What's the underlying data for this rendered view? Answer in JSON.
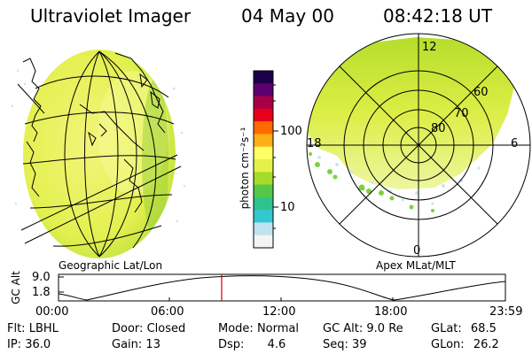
{
  "header": {
    "title": "Ultraviolet Imager",
    "date": "04 May 00",
    "time": "08:42:18 UT"
  },
  "geo_panel": {
    "label": "Geographic Lat/Lon"
  },
  "polar_panel": {
    "label": "Apex MLat/MLT",
    "mlt_labels": {
      "top": "12",
      "left": "18",
      "right": "6",
      "bottom": "0"
    },
    "lat_labels": [
      "60",
      "70",
      "80"
    ]
  },
  "colorbar": {
    "unit_label": "photon cm⁻²s⁻¹",
    "ticks": [
      "100",
      "10"
    ],
    "scale": "log",
    "colors": [
      "#f4f4f4",
      "#bfe3ef",
      "#33c7d2",
      "#2fc28c",
      "#55c84a",
      "#a5dc2b",
      "#e6f04a",
      "#ffff66",
      "#ffae14",
      "#ff6a00",
      "#e8001a",
      "#a80046",
      "#5c006e",
      "#1c0048"
    ]
  },
  "altitude_plot": {
    "ylabel": "GC Alt",
    "yticks": [
      "9.0",
      "1.8"
    ],
    "xticks": [
      "00:00",
      "06:00",
      "12:00",
      "18:00",
      "23:59"
    ],
    "current_time_fraction": 0.365,
    "marker_color": "#d00000"
  },
  "status": {
    "row1": [
      {
        "label": "Flt:",
        "value": "LBHL"
      },
      {
        "label": "Door:",
        "value": "Closed"
      },
      {
        "label": "Mode:",
        "value": "Normal"
      },
      {
        "label": "GC Alt:",
        "value": "9.0 Re"
      },
      {
        "label": "GLat:",
        "value": "68.5"
      }
    ],
    "row2": [
      {
        "label": "IP:",
        "value": "36.0"
      },
      {
        "label": "Gain:",
        "value": "13"
      },
      {
        "label": "Dsp:",
        "value": "4.6"
      },
      {
        "label": "Seq:",
        "value": "39"
      },
      {
        "label": "GLon:",
        "value": "26.2"
      }
    ]
  }
}
